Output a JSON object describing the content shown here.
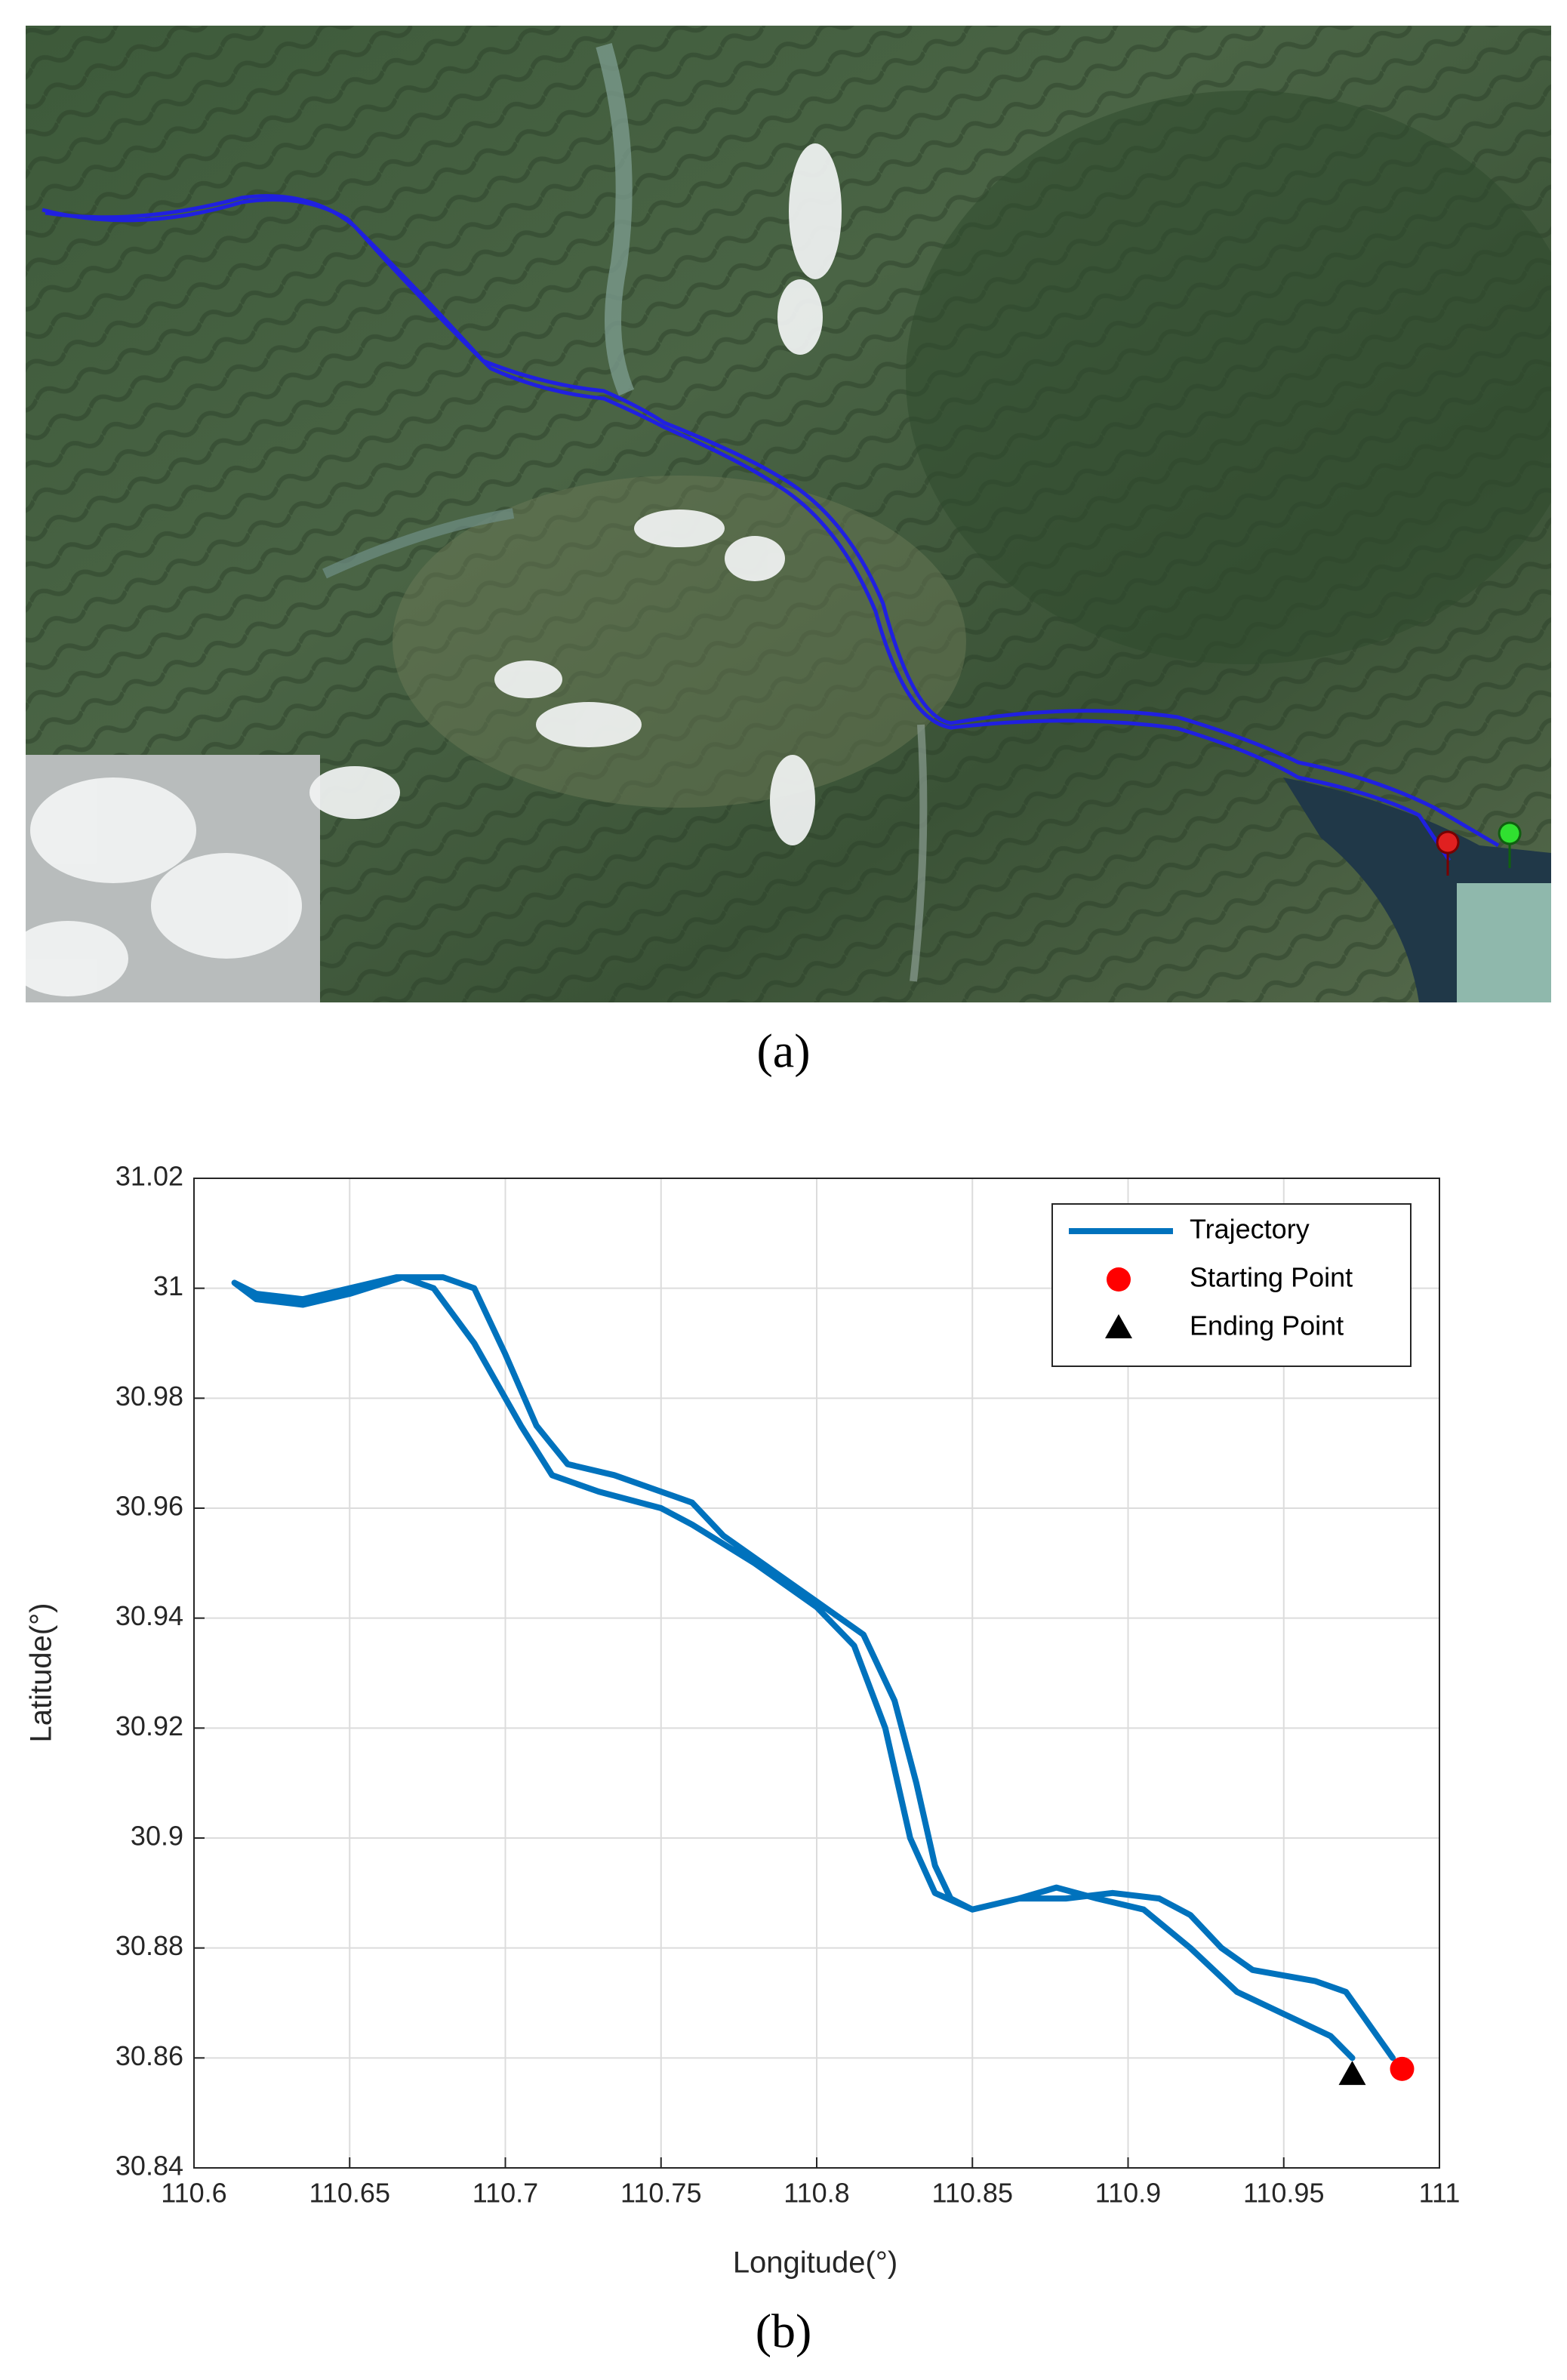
{
  "panel_labels": [
    "(a)",
    "(b)"
  ],
  "chart_data": {
    "type": "line",
    "xlabel": "Longitude(°)",
    "ylabel": "Latitude(°)",
    "xlim": [
      110.6,
      111
    ],
    "ylim": [
      30.84,
      31.02
    ],
    "xticks": [
      110.6,
      110.65,
      110.7,
      110.75,
      110.8,
      110.85,
      110.9,
      110.95,
      111
    ],
    "yticks": [
      30.84,
      30.86,
      30.88,
      30.9,
      30.92,
      30.94,
      30.96,
      30.98,
      31,
      31.02
    ],
    "grid": true,
    "legend": "northeast",
    "series": [
      {
        "name": "Trajectory",
        "color": "#0072bd",
        "marker": "none",
        "x": [
          110.985,
          110.975,
          110.97,
          110.96,
          110.94,
          110.93,
          110.92,
          110.91,
          110.895,
          110.88,
          110.865,
          110.85,
          110.843,
          110.838,
          110.832,
          110.825,
          110.815,
          110.8,
          110.785,
          110.77,
          110.76,
          110.75,
          110.735,
          110.72,
          110.71,
          110.7,
          110.69,
          110.68,
          110.665,
          110.65,
          110.635,
          110.62,
          110.613,
          110.62,
          110.635,
          110.65,
          110.667,
          110.677,
          110.69,
          110.705,
          110.715,
          110.73,
          110.75,
          110.76,
          110.78,
          110.8,
          110.812,
          110.822,
          110.83,
          110.838,
          110.85,
          110.865,
          110.877,
          110.89,
          110.905,
          110.92,
          110.935,
          110.95,
          110.965,
          110.972
        ],
        "y": [
          30.86,
          30.868,
          30.872,
          30.874,
          30.876,
          30.88,
          30.886,
          30.889,
          30.89,
          30.889,
          30.889,
          30.887,
          30.889,
          30.895,
          30.91,
          30.925,
          30.937,
          30.943,
          30.949,
          30.955,
          30.961,
          30.963,
          30.966,
          30.968,
          30.975,
          30.988,
          31.0,
          31.002,
          31.002,
          31.0,
          30.998,
          30.999,
          31.001,
          30.998,
          30.997,
          30.999,
          31.002,
          31.0,
          30.99,
          30.975,
          30.966,
          30.963,
          30.96,
          30.957,
          30.95,
          30.942,
          30.935,
          30.92,
          30.9,
          30.89,
          30.887,
          30.889,
          30.891,
          30.889,
          30.887,
          30.88,
          30.872,
          30.868,
          30.864,
          30.86
        ]
      },
      {
        "name": "Starting Point",
        "color": "#ff0000",
        "marker": "circle",
        "x": [
          110.988
        ],
        "y": [
          30.858
        ]
      },
      {
        "name": "Ending Point",
        "color": "#000000",
        "marker": "triangle",
        "x": [
          110.972
        ],
        "y": [
          30.857
        ]
      }
    ]
  }
}
